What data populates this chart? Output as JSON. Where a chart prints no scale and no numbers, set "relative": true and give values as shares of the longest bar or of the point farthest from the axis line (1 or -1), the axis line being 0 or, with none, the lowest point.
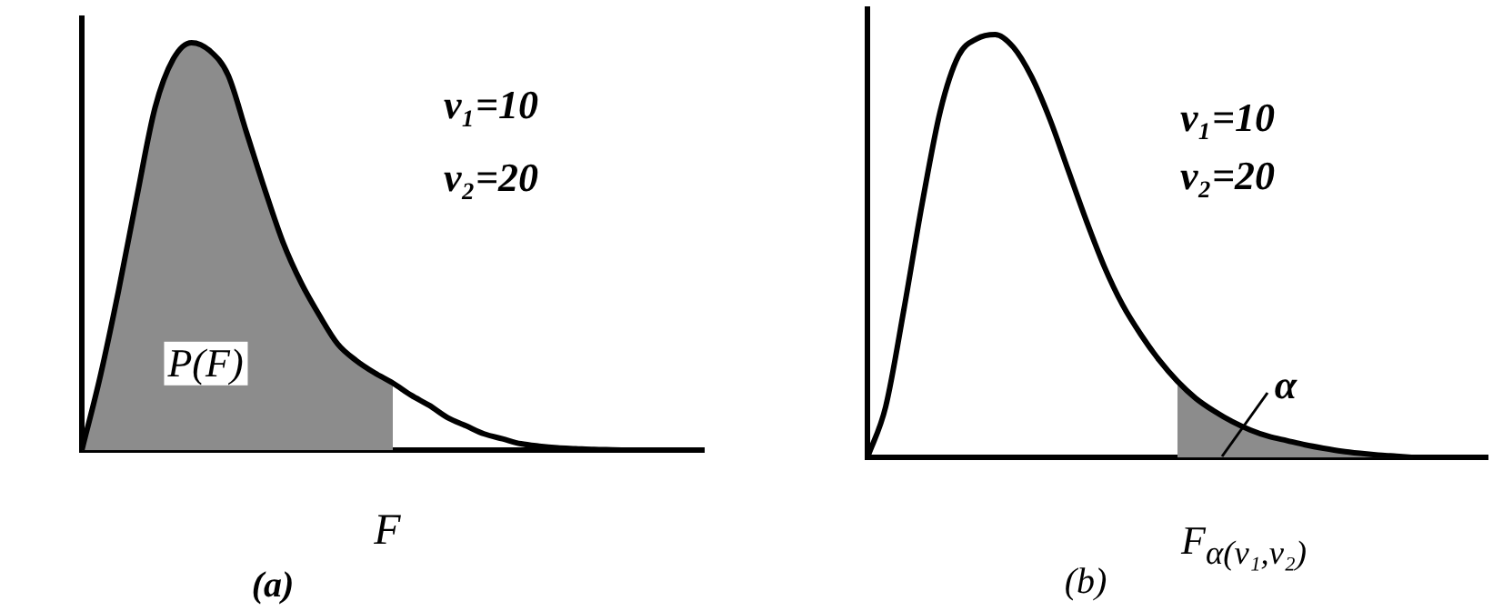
{
  "chart_data": [
    {
      "type": "line",
      "relative": true,
      "categories": [
        null,
        null,
        null,
        null,
        null,
        null,
        null,
        null,
        null,
        null,
        null,
        null,
        null,
        null,
        null,
        null,
        null,
        null,
        null,
        null,
        null,
        null,
        null,
        null,
        null,
        null,
        null,
        null,
        null,
        null,
        null,
        null,
        null,
        null,
        null
      ],
      "series": [
        {
          "color": "#000000",
          "values": [
            0,
            0.18,
            0.39,
            0.62,
            0.84,
            0.96,
            1.0,
            0.98,
            0.92,
            0.78,
            0.64,
            0.51,
            0.41,
            0.33,
            0.26,
            0.22,
            0.19,
            0.165,
            0.135,
            0.11,
            0.08,
            0.06,
            0.04,
            0.028,
            0.016,
            0.01,
            0.006,
            0.004,
            0.002,
            0.001,
            0,
            null,
            null,
            null,
            null
          ]
        },
        {
          "type": "area",
          "color": "#8c8c8c",
          "values": [
            0,
            0.18,
            0.39,
            0.62,
            0.84,
            0.96,
            1.0,
            0.98,
            0.92,
            0.78,
            0.64,
            0.51,
            0.41,
            0.33,
            0.26,
            0.22,
            0.19,
            0.165,
            null,
            null,
            null,
            null,
            null,
            null,
            null,
            null,
            null,
            null,
            null,
            null,
            null,
            null,
            null,
            null,
            null
          ]
        }
      ],
      "annotations": [
        "ν₁=10",
        "ν₂=20",
        "P(F)",
        "F",
        "(a)"
      ]
    },
    {
      "type": "line",
      "relative": true,
      "categories": [
        null,
        null,
        null,
        null,
        null,
        null,
        null,
        null,
        null,
        null,
        null,
        null,
        null,
        null,
        null,
        null,
        null,
        null,
        null,
        null,
        null,
        null,
        null,
        null,
        null,
        null,
        null,
        null,
        null,
        null,
        null,
        null,
        null,
        null,
        null
      ],
      "series": [
        {
          "color": "#000000",
          "values": [
            0,
            0.12,
            0.35,
            0.6,
            0.82,
            0.95,
            0.99,
            1.0,
            0.97,
            0.9,
            0.8,
            0.68,
            0.56,
            0.45,
            0.36,
            0.29,
            0.23,
            0.18,
            0.14,
            0.11,
            0.085,
            0.065,
            0.05,
            0.04,
            0.03,
            0.022,
            0.015,
            0.01,
            0.006,
            0.003,
            0,
            null,
            null,
            null,
            null
          ]
        },
        {
          "type": "area",
          "color": "#8c8c8c",
          "values": [
            null,
            null,
            null,
            null,
            null,
            null,
            null,
            null,
            null,
            null,
            null,
            null,
            null,
            null,
            null,
            null,
            null,
            0.18,
            0.14,
            0.11,
            0.085,
            0.065,
            0.05,
            0.04,
            0.03,
            0.022,
            0.015,
            0.01,
            0.006,
            0.003,
            0,
            null,
            null,
            null,
            null
          ]
        }
      ],
      "annotations": [
        "ν₁=10",
        "ν₂=20",
        "α",
        "F$_{α(ν₁,ν₂)}$",
        "(b)"
      ]
    }
  ]
}
